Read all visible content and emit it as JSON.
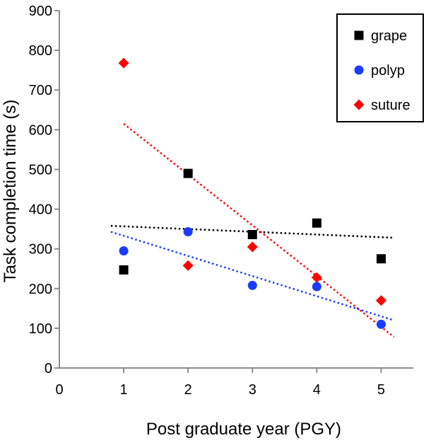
{
  "chart_data": {
    "type": "scatter",
    "title": "",
    "xlabel": "Post graduate year (PGY)",
    "ylabel": "Task completion time (s)",
    "xlim": [
      0,
      5.5
    ],
    "ylim": [
      0,
      900
    ],
    "xticks": [
      0,
      1,
      2,
      3,
      4,
      5
    ],
    "yticks": [
      0,
      100,
      200,
      300,
      400,
      500,
      600,
      700,
      800,
      900
    ],
    "grid": false,
    "legend_position": "top-right",
    "series": [
      {
        "name": "grape",
        "marker": "square",
        "color": "#000000",
        "x": [
          1,
          2,
          3,
          4,
          5
        ],
        "y": [
          247,
          490,
          336,
          365,
          275
        ],
        "trendline": {
          "x": [
            0.8,
            5.2
          ],
          "y": [
            358,
            328
          ],
          "color": "#000000"
        }
      },
      {
        "name": "polyp",
        "marker": "circle",
        "color": "#1a3cff",
        "x": [
          1,
          2,
          3,
          4,
          5
        ],
        "y": [
          295,
          343,
          208,
          205,
          110
        ],
        "trendline": {
          "x": [
            0.8,
            5.2
          ],
          "y": [
            343,
            120
          ],
          "color": "#1a3cff"
        }
      },
      {
        "name": "suture",
        "marker": "diamond",
        "color": "#ff0000",
        "x": [
          1,
          2,
          3,
          4,
          5
        ],
        "y": [
          768,
          258,
          305,
          228,
          170
        ],
        "trendline": {
          "x": [
            1,
            5.2
          ],
          "y": [
            615,
            78
          ],
          "color": "#ff0000"
        }
      }
    ]
  }
}
